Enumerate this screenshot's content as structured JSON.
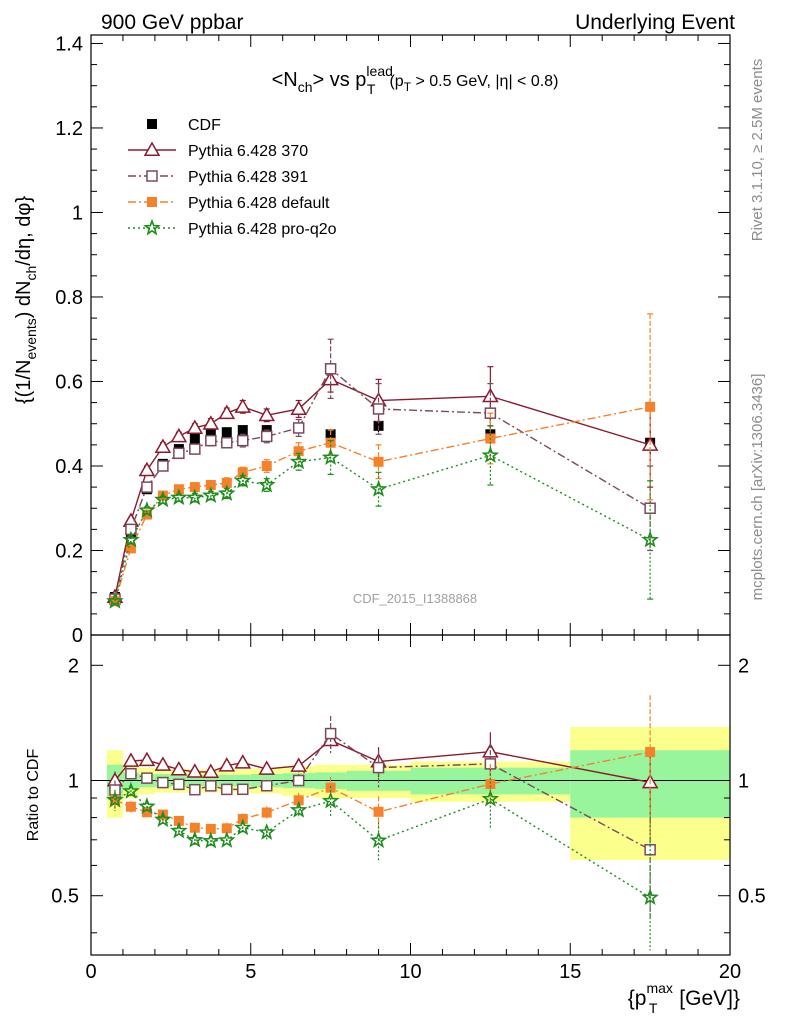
{
  "header": {
    "left": "900 GeV ppbar",
    "right": "Underlying Event"
  },
  "side_labels": {
    "rivet": "Rivet 3.1.10, ≥ 2.5M events",
    "mcplots": "mcplots.cern.ch [arXiv:1306.3436]"
  },
  "chart_data": {
    "type": "scatter",
    "title": "<N_ch> vs p_T^lead (p_T > 0.5 GeV, |η| < 0.8)",
    "watermark": "CDF_2015_I1388868",
    "xlabel": "{p_T^max [GeV]}",
    "ylabel_main": "{(1/N_events) dN_ch/dη, dφ}",
    "ylabel_ratio": "Ratio to CDF",
    "xlim": [
      0,
      20
    ],
    "ylim_main": [
      0,
      1.42
    ],
    "ylim_ratio": [
      0.35,
      2.4
    ],
    "ratio_scale": "log",
    "xticks": [
      0,
      5,
      10,
      15,
      20
    ],
    "yticks_main": [
      0,
      0.2,
      0.4,
      0.6,
      0.8,
      1,
      1.2,
      1.4
    ],
    "yticks_ratio": [
      0.5,
      1,
      2
    ],
    "legend_position": "top-left",
    "x": [
      0.75,
      1.25,
      1.75,
      2.25,
      2.75,
      3.25,
      3.75,
      4.25,
      4.75,
      5.5,
      6.5,
      7.5,
      9.0,
      12.5,
      17.5
    ],
    "series": [
      {
        "name": "CDF",
        "color": "#000000",
        "marker": "filled-square",
        "values": [
          0.09,
          0.24,
          0.345,
          0.405,
          0.44,
          0.465,
          0.475,
          0.48,
          0.485,
          0.485,
          0.49,
          0.475,
          0.495,
          0.475,
          0.455
        ],
        "errors": [
          0.004,
          0.006,
          0.008,
          0.008,
          0.008,
          0.008,
          0.008,
          0.008,
          0.008,
          0.008,
          0.01,
          0.012,
          0.015,
          0.02,
          0.03
        ]
      },
      {
        "name": "Pythia 6.428 370",
        "color": "#8b1a2e",
        "marker": "open-triangle",
        "line": "solid",
        "values": [
          0.09,
          0.27,
          0.39,
          0.445,
          0.47,
          0.49,
          0.5,
          0.525,
          0.54,
          0.52,
          0.535,
          0.605,
          0.555,
          0.565,
          0.45
        ],
        "errors": [
          0.005,
          0.008,
          0.01,
          0.01,
          0.01,
          0.01,
          0.012,
          0.012,
          0.015,
          0.015,
          0.02,
          0.03,
          0.05,
          0.07,
          0.1
        ]
      },
      {
        "name": "Pythia 6.428 391",
        "color": "#7a4a5a",
        "marker": "open-square",
        "line": "dashdot",
        "values": [
          0.085,
          0.25,
          0.35,
          0.4,
          0.43,
          0.44,
          0.46,
          0.455,
          0.46,
          0.47,
          0.49,
          0.63,
          0.535,
          0.525,
          0.3
        ],
        "errors": [
          0.005,
          0.008,
          0.01,
          0.01,
          0.01,
          0.01,
          0.012,
          0.012,
          0.015,
          0.015,
          0.02,
          0.07,
          0.06,
          0.07,
          0.1
        ]
      },
      {
        "name": "Pythia 6.428 default",
        "color": "#f5822a",
        "marker": "filled-square",
        "line": "dashdot",
        "values": [
          0.08,
          0.205,
          0.285,
          0.33,
          0.345,
          0.35,
          0.355,
          0.36,
          0.385,
          0.4,
          0.435,
          0.455,
          0.41,
          0.465,
          0.54
        ],
        "errors": [
          0.005,
          0.007,
          0.008,
          0.008,
          0.008,
          0.01,
          0.01,
          0.012,
          0.012,
          0.015,
          0.02,
          0.03,
          0.04,
          0.06,
          0.22
        ]
      },
      {
        "name": "Pythia 6.428 pro-q2o",
        "color": "#1e8c1e",
        "marker": "star",
        "line": "dotted",
        "values": [
          0.08,
          0.225,
          0.295,
          0.32,
          0.325,
          0.325,
          0.33,
          0.335,
          0.365,
          0.355,
          0.41,
          0.42,
          0.345,
          0.425,
          0.225
        ],
        "errors": [
          0.005,
          0.007,
          0.008,
          0.008,
          0.008,
          0.01,
          0.01,
          0.012,
          0.012,
          0.015,
          0.02,
          0.04,
          0.04,
          0.07,
          0.14
        ]
      }
    ],
    "ratio_band_bins": [
      0.5,
      1.0,
      1.5,
      2.0,
      2.5,
      3.0,
      3.5,
      4.0,
      4.5,
      5.0,
      6.0,
      7.0,
      8.0,
      10.0,
      15.0,
      20.0
    ],
    "ratio_band_stat": [
      0.1,
      0.05,
      0.04,
      0.04,
      0.035,
      0.035,
      0.035,
      0.035,
      0.035,
      0.04,
      0.045,
      0.05,
      0.06,
      0.08,
      0.2
    ],
    "ratio_band_total": [
      0.2,
      0.1,
      0.08,
      0.07,
      0.07,
      0.07,
      0.07,
      0.07,
      0.07,
      0.075,
      0.09,
      0.1,
      0.1,
      0.12,
      0.38
    ],
    "band_colors": {
      "inner": "#99f59c",
      "outer": "#fbff8c"
    }
  }
}
